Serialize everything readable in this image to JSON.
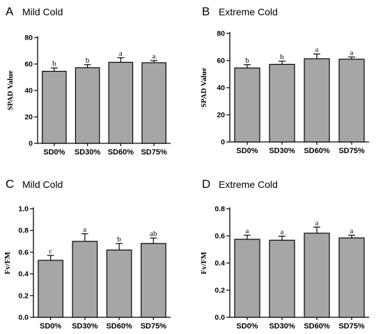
{
  "chart_data": [
    {
      "type": "bar",
      "panel_letter": "A",
      "title": "Mild Cold",
      "ylabel": "SPAD Value",
      "xlabel": "",
      "categories": [
        "SD0%",
        "SD30%",
        "SD60%",
        "SD75%"
      ],
      "values": [
        54.5,
        57.2,
        61.3,
        61.0
      ],
      "errors": [
        2.5,
        2.3,
        3.5,
        1.6
      ],
      "significance": [
        "b",
        "b",
        "a",
        "a"
      ],
      "ylim": [
        0,
        80
      ],
      "yticks": [
        "0",
        "20",
        "40",
        "60",
        "80"
      ],
      "bar_color": "#a6a6a6"
    },
    {
      "type": "bar",
      "panel_letter": "B",
      "title": "Extreme Cold",
      "ylabel": "SPAD Value",
      "xlabel": "",
      "categories": [
        "SD0%",
        "SD30%",
        "SD60%",
        "SD75%"
      ],
      "values": [
        54.5,
        57.2,
        61.3,
        61.0
      ],
      "errors": [
        2.5,
        2.3,
        3.5,
        1.6
      ],
      "significance": [
        "b",
        "b",
        "a",
        "a"
      ],
      "ylim": [
        0,
        80
      ],
      "yticks": [
        "0",
        "20",
        "40",
        "60",
        "80"
      ],
      "bar_color": "#a6a6a6"
    },
    {
      "type": "bar",
      "panel_letter": "C",
      "title": "Mild Cold",
      "ylabel": "Fv/FM",
      "xlabel": "",
      "categories": [
        "SD0%",
        "SD30%",
        "SD60%",
        "SD75%"
      ],
      "values": [
        0.525,
        0.7,
        0.62,
        0.68
      ],
      "errors": [
        0.045,
        0.07,
        0.06,
        0.05
      ],
      "significance": [
        "c",
        "a",
        "b",
        "ab"
      ],
      "ylim": [
        0,
        1.0
      ],
      "yticks": [
        "0.0",
        "0.2",
        "0.4",
        "0.6",
        "0.8",
        "1.0"
      ],
      "bar_color": "#a6a6a6"
    },
    {
      "type": "bar",
      "panel_letter": "D",
      "title": "Extreme Cold",
      "ylabel": "Fv/FM",
      "xlabel": "",
      "categories": [
        "SD0%",
        "SD30%",
        "SD60%",
        "SD75%"
      ],
      "values": [
        0.575,
        0.568,
        0.62,
        0.585
      ],
      "errors": [
        0.03,
        0.03,
        0.045,
        0.02
      ],
      "significance": [
        "a",
        "a",
        "a",
        "a"
      ],
      "ylim": [
        0,
        0.8
      ],
      "yticks": [
        "0.0",
        "0.2",
        "0.4",
        "0.6",
        "0.8"
      ],
      "bar_color": "#a6a6a6"
    }
  ]
}
